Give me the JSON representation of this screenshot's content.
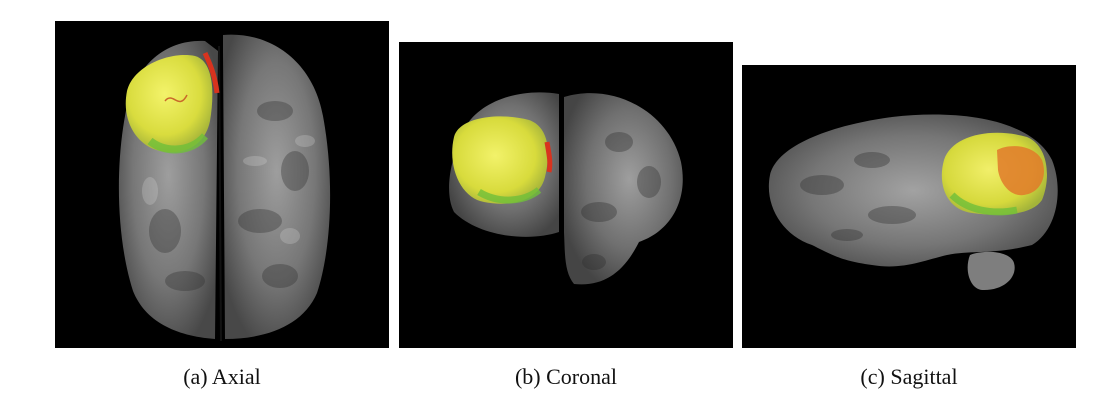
{
  "figure": {
    "panels": [
      {
        "id": "axial",
        "caption": "(a) Axial"
      },
      {
        "id": "coronal",
        "caption": "(b) Coronal"
      },
      {
        "id": "sagittal",
        "caption": "(c) Sagittal"
      }
    ]
  },
  "colors": {
    "background": "#000000",
    "brain_tissue": "#8a8a8a",
    "tumor_yellow": "#e6e84a",
    "tumor_edge_green": "#6fbf3a",
    "vessel_red": "#d8331e",
    "sagittal_orange": "#e07a2a"
  }
}
